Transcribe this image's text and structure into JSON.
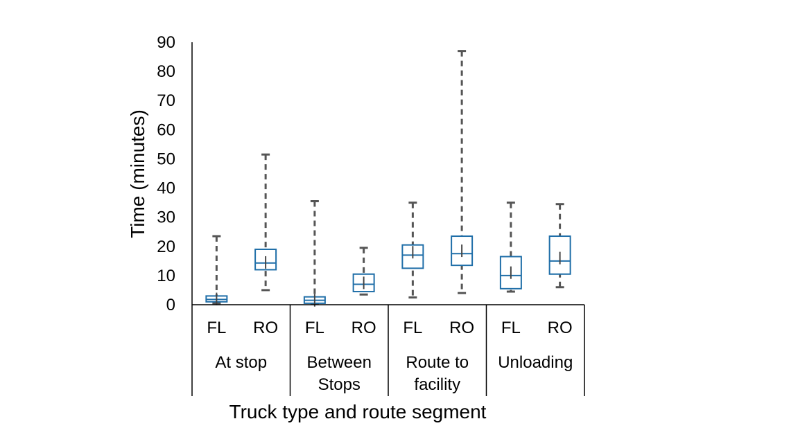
{
  "chart_data": {
    "type": "box",
    "title": "",
    "xlabel": "Truck type and route segment",
    "ylabel": "Time (minutes)",
    "ylim": [
      0,
      90
    ],
    "yticks": [
      0,
      10,
      20,
      30,
      40,
      50,
      60,
      70,
      80,
      90
    ],
    "groups": [
      {
        "label_lines": [
          "At stop"
        ],
        "types": [
          "FL",
          "RO"
        ]
      },
      {
        "label_lines": [
          "Between",
          "Stops"
        ],
        "types": [
          "FL",
          "RO"
        ]
      },
      {
        "label_lines": [
          "Route to",
          "facility"
        ],
        "types": [
          "FL",
          "RO"
        ]
      },
      {
        "label_lines": [
          "Unloading"
        ],
        "types": [
          "FL",
          "RO"
        ]
      }
    ],
    "boxes": [
      {
        "group": "At stop",
        "type": "FL",
        "min": 0.5,
        "q1": 1.0,
        "median": 1.8,
        "mean": 2.0,
        "q3": 3.0,
        "max": 23.5
      },
      {
        "group": "At stop",
        "type": "RO",
        "min": 5.0,
        "q1": 12.0,
        "median": 14.3,
        "mean": 14.5,
        "q3": 19.0,
        "max": 51.5
      },
      {
        "group": "Between Stops",
        "type": "FL",
        "min": 0.5,
        "q1": 0.5,
        "median": 1.5,
        "mean": 1.5,
        "q3": 2.7,
        "max": 35.5
      },
      {
        "group": "Between Stops",
        "type": "RO",
        "min": 3.5,
        "q1": 4.5,
        "median": 7.0,
        "mean": 7.5,
        "q3": 10.5,
        "max": 19.5
      },
      {
        "group": "Route to facility",
        "type": "FL",
        "min": 2.5,
        "q1": 12.5,
        "median": 17.0,
        "mean": 18.0,
        "q3": 20.5,
        "max": 35.0
      },
      {
        "group": "Route to facility",
        "type": "RO",
        "min": 4.0,
        "q1": 13.5,
        "median": 17.5,
        "mean": 18.5,
        "q3": 23.5,
        "max": 87.0
      },
      {
        "group": "Unloading",
        "type": "FL",
        "min": 4.5,
        "q1": 5.5,
        "median": 10.0,
        "mean": 11.0,
        "q3": 16.5,
        "max": 35.0
      },
      {
        "group": "Unloading",
        "type": "RO",
        "min": 6.0,
        "q1": 10.5,
        "median": 15.0,
        "mean": 16.0,
        "q3": 23.5,
        "max": 34.5
      }
    ],
    "colors": {
      "box": "#1f6ea8",
      "whisker": "#555555",
      "axis": "#000000"
    },
    "grid": false,
    "legend": "none"
  }
}
